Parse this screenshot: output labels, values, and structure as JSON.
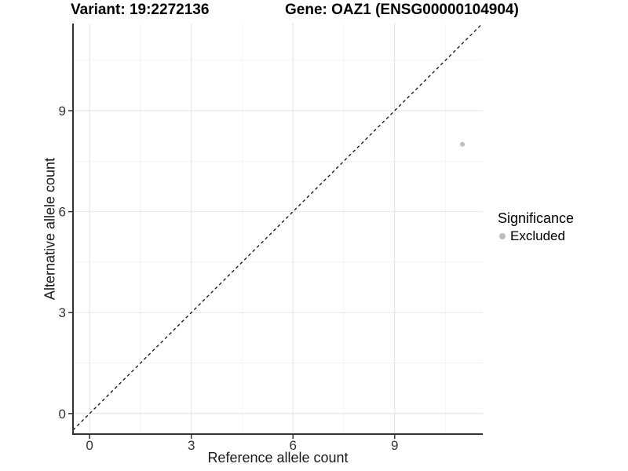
{
  "chart_data": {
    "type": "scatter",
    "titles": {
      "left": "Variant: 19:2272136",
      "right": "Gene: OAZ1 (ENSG00000104904)"
    },
    "xlabel": "Reference allele count",
    "ylabel": "Alternative allele count",
    "xlim": [
      -0.49,
      11.6
    ],
    "ylim": [
      -0.61,
      11.59
    ],
    "x_major_ticks": [
      0,
      3,
      6,
      9
    ],
    "y_major_ticks": [
      0,
      3,
      6,
      9
    ],
    "x_minor_ticks": [
      1.5,
      4.5,
      7.5,
      10.5
    ],
    "y_minor_ticks": [
      1.5,
      4.5,
      7.5,
      10.5
    ],
    "grid": true,
    "identity_line": {
      "slope": 1,
      "intercept": 0,
      "style": "dashed",
      "color": "#111111"
    },
    "series": [
      {
        "name": "Excluded",
        "color": "#bebebe",
        "points": [
          {
            "x": 11,
            "y": 8
          }
        ]
      }
    ],
    "legend": {
      "title": "Significance",
      "position": "right",
      "items": [
        {
          "label": "Excluded",
          "color": "#bebebe"
        }
      ]
    },
    "colors": {
      "grid_major": "#e4e4e4",
      "grid_minor": "#f1f1f1",
      "axis_line": "#333333",
      "axis_text": "#333333",
      "panel_bg": "#ffffff"
    }
  }
}
